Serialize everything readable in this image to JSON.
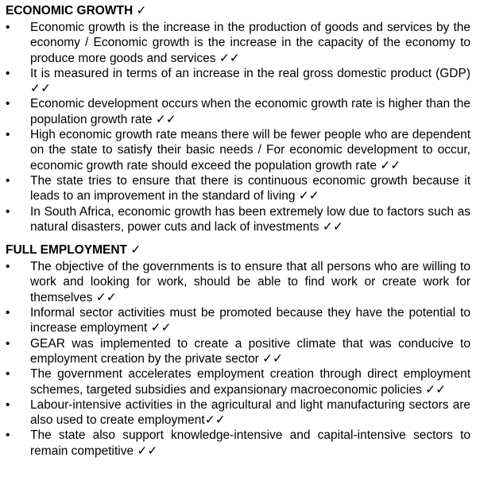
{
  "sections": [
    {
      "heading": "ECONOMIC GROWTH",
      "heading_tick": "✓",
      "items": [
        {
          "text": "Economic growth is the increase in the production of goods and services by the economy / Economic growth is the increase in the capacity of the economy to produce more goods and services",
          "tick": "✓✓"
        },
        {
          "text": "It is measured in terms of an increase in the real gross domestic product (GDP)",
          "tick": "✓✓"
        },
        {
          "text": "Economic development occurs when the economic growth rate is higher than the population growth rate",
          "tick": "✓✓"
        },
        {
          "text": "High economic growth rate means there will be fewer people who are dependent on the state to satisfy their basic needs / For economic development to occur, economic growth rate should exceed the population growth rate",
          "tick": "✓✓"
        },
        {
          "text": "The state tries to ensure that there is continuous economic growth because it leads to an improvement in the standard of living",
          "tick": "✓✓"
        },
        {
          "text": "In South Africa, economic growth has been extremely low due to factors such as natural disasters, power cuts and lack of investments",
          "tick": "✓✓"
        }
      ]
    },
    {
      "heading": "FULL EMPLOYMENT",
      "heading_tick": "✓",
      "items": [
        {
          "text": "The objective of the governments is to ensure that all persons who are willing to work and looking for work, should be able to find work or create work for themselves",
          "tick": "✓✓"
        },
        {
          "text": "Informal sector activities must be promoted because they have the potential to increase employment",
          "tick": "✓✓"
        },
        {
          "text": "GEAR was implemented to create a positive climate that was conducive to employment creation by the private sector",
          "tick": "✓✓"
        },
        {
          "text": "The government accelerates employment creation through direct employment schemes, targeted subsidies and expansionary macroeconomic policies",
          "tick": "✓✓"
        },
        {
          "text": "Labour-intensive activities in the agricultural and light manufacturing sectors are also used to create employment",
          "tick": "✓✓"
        },
        {
          "text": "The state also support knowledge-intensive and capital-intensive sectors to remain competitive",
          "tick": "✓✓"
        }
      ]
    }
  ],
  "bullet_symbol": "•"
}
